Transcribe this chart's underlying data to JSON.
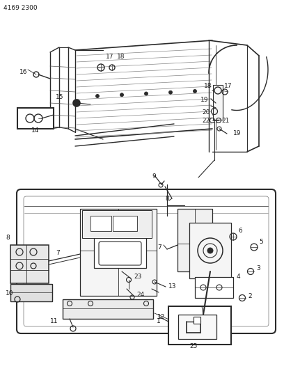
{
  "title_code": "4169 2300",
  "bg_color": "#ffffff",
  "line_color": "#2a2a2a",
  "label_color": "#1a1a1a",
  "fig_width": 4.08,
  "fig_height": 5.33,
  "dpi": 100
}
